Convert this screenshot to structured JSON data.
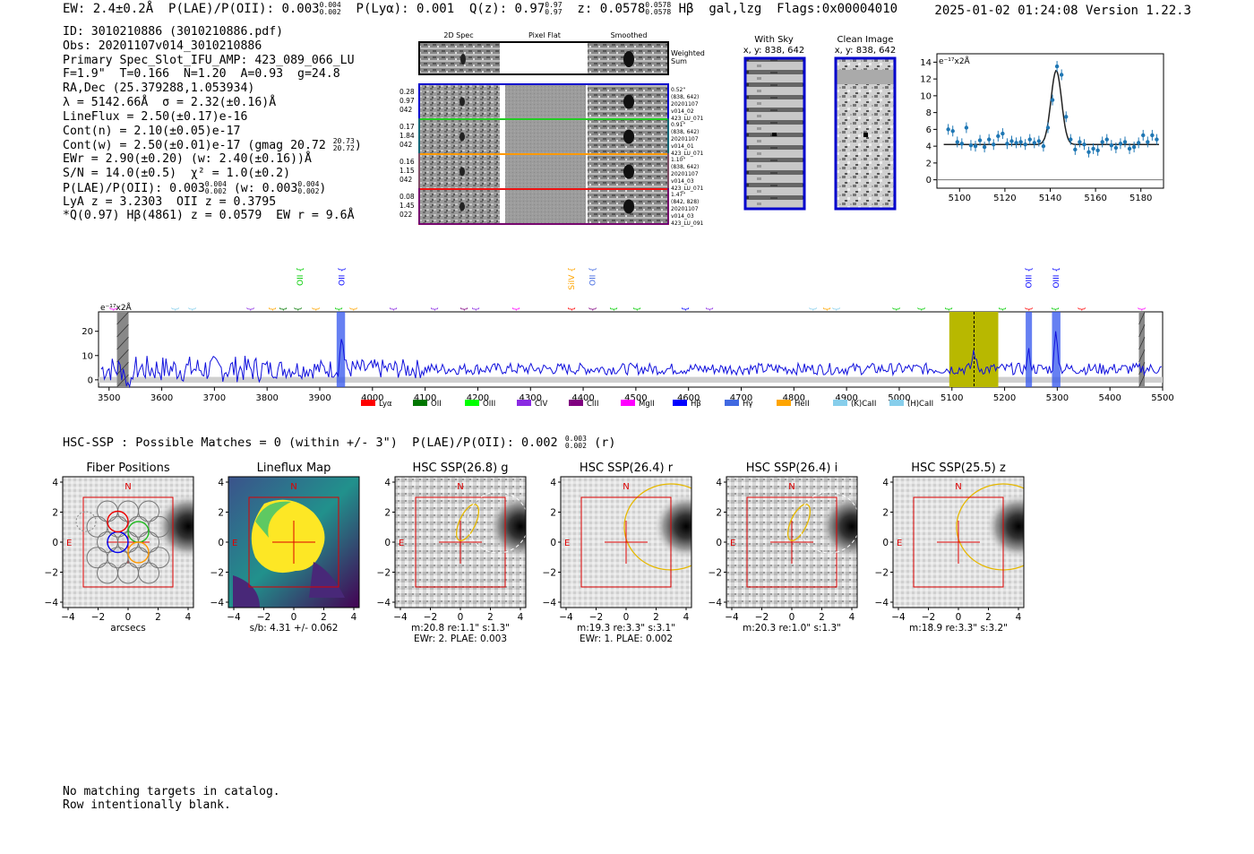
{
  "header": {
    "ew": "EW: 2.4±0.2Å",
    "plae_label": "P(LAE)/P(OII): 0.003",
    "plae_hi": "0.004",
    "plae_lo": "0.002",
    "plya": "P(Lyα): 0.001",
    "q_label": "Q(z): 0.97",
    "q_hi": "0.97",
    "q_lo": "0.97",
    "z_label": "z: 0.0578",
    "z_hi": "0.0578",
    "z_lo": "0.0578",
    "line": "Hβ",
    "flags": "gal,lzg  Flags:0x00004010",
    "datetime": "2025-01-02 01:24:08",
    "version": "Version 1.22.3"
  },
  "info": {
    "id": "ID: 3010210886 (3010210886.pdf)",
    "obs": "Obs: 20201107v014_3010210886",
    "primary": "Primary Spec_Slot_IFU_AMP: 423_089_066_LU",
    "fiber": "F=1.9\"  T=0.166  N=1.20  A=0.93  g=24.8",
    "radec": "RA,Dec (25.379288,1.053934)",
    "lambda": "λ = 5142.66Å  σ = 2.32(±0.16)Å",
    "lineflux": "LineFlux = 2.50(±0.17)e-16",
    "contn": "Cont(n) = 2.10(±0.05)e-17",
    "contw": "Cont(w) = 2.50(±0.01)e-17 (gmag 20.72",
    "contw_hi": "20.73",
    "contw_lo": "20.72",
    "contw_end": ")",
    "ewr": "EWr = 2.90(±0.20) (w: 2.40(±0.16))Å",
    "sn": "S/N = 14.0(±0.5)  χ² = 1.0(±0.2)",
    "plae": "P(LAE)/P(OII): 0.003",
    "plae_hi": "0.004",
    "plae_lo": "0.002",
    "plae_w": "(w: 0.003",
    "plae_w_hi": "0.004",
    "plae_w_lo": "0.002",
    "plae_end": ")",
    "lya": "LyA z = 3.2303  OII z = 0.3795",
    "q": "*Q(0.97) Hβ(4861) z = 0.0579  EW r = 9.6Å"
  },
  "cutouts": {
    "col_2d": "2D Spec",
    "col_flat": "Pixel Flat",
    "col_smooth": "Smoothed",
    "weighted": "Weighted Sum",
    "rows": [
      {
        "l1": "0.28",
        "l2": "0.97",
        "l3": "042",
        "r": [
          "0.52\"",
          "(838, 642)",
          "20201107",
          "v014_02",
          "423_LU_071"
        ],
        "color": "#0000cc"
      },
      {
        "l1": "0.17",
        "l2": "1.84",
        "l3": "042",
        "r": [
          "0.91\"",
          "(838, 642)",
          "20201107",
          "v014_01",
          "423_LU_071"
        ],
        "color": "#22cc22"
      },
      {
        "l1": "0.16",
        "l2": "1.15",
        "l3": "042",
        "r": [
          "1.10\"",
          "(838, 642)",
          "20201107",
          "v014_03",
          "423_LU_071"
        ],
        "color": "#ff9900"
      },
      {
        "l1": "0.08",
        "l2": "1.45",
        "l3": "022",
        "r": [
          "1.47\"",
          "(842, 828)",
          "20201107",
          "v014_03",
          "423_LU_091"
        ],
        "color": "#ee1111"
      }
    ]
  },
  "sky": {
    "with_sky_title": "With Sky",
    "with_sky_xy": "x, y: 838, 642",
    "clean_title": "Clean Image",
    "clean_xy": "x, y: 838, 642"
  },
  "zoom_chart": {
    "ylabel": "e⁻¹⁷x2Å",
    "xticks": [
      "5100",
      "5120",
      "5140",
      "5160",
      "5180"
    ],
    "yticks": [
      "0",
      "2",
      "4",
      "6",
      "8",
      "10",
      "12",
      "14"
    ]
  },
  "full_chart": {
    "ylabel": "e⁻¹⁷x2Å",
    "xticks": [
      "3500",
      "3600",
      "3700",
      "3800",
      "3900",
      "4000",
      "4100",
      "4200",
      "4300",
      "4400",
      "4500",
      "4600",
      "4700",
      "4800",
      "4900",
      "5000",
      "5100",
      "5200",
      "5300",
      "5400",
      "5500"
    ],
    "yticks": [
      "0",
      "10",
      "20"
    ],
    "legend": [
      {
        "label": "Lyα",
        "color": "#ff0000"
      },
      {
        "label": "OII",
        "color": "#007700"
      },
      {
        "label": "OIII",
        "color": "#00ff00"
      },
      {
        "label": "CIV",
        "color": "#8a2be2"
      },
      {
        "label": "CIII",
        "color": "#800080"
      },
      {
        "label": "MgII",
        "color": "#ff00ff"
      },
      {
        "label": "Hβ",
        "color": "#0000ff"
      },
      {
        "label": "Hγ",
        "color": "#4169e1"
      },
      {
        "label": "HeII",
        "color": "#ffa500"
      },
      {
        "label": "(K)CaII",
        "color": "#87ceeb"
      },
      {
        "label": "(H)CaII",
        "color": "#87ceeb"
      }
    ],
    "lines": [
      {
        "name": "CIII",
        "x": 3508,
        "row": 3,
        "color": "#ff00ff"
      },
      {
        "name": "MgII",
        "x": 3625,
        "row": 3,
        "color": "#87ceeb"
      },
      {
        "name": "MgII",
        "x": 3658,
        "row": 3,
        "color": "#87ceeb"
      },
      {
        "name": "SiIV",
        "x": 3768,
        "row": 3,
        "color": "#8a2be2"
      },
      {
        "name": "Lyα",
        "x": 3810,
        "row": 3,
        "color": "#ffa500"
      },
      {
        "name": "OII",
        "x": 3830,
        "row": 3,
        "color": "#007700"
      },
      {
        "name": "MgII",
        "x": 3858,
        "row": 3,
        "color": "#007700"
      },
      {
        "name": "NV",
        "x": 3892,
        "row": 3,
        "color": "#ffa500"
      },
      {
        "name": "OII",
        "x": 3863,
        "row": 1,
        "color": "#00cc00"
      },
      {
        "name": "Hγ",
        "x": 3936,
        "row": 3,
        "color": "#00cc00"
      },
      {
        "name": "SiII",
        "x": 3964,
        "row": 3,
        "color": "#ffa500"
      },
      {
        "name": "OII",
        "x": 3942,
        "row": 1,
        "color": "#0000ff"
      },
      {
        "name": "Lyα",
        "x": 4039,
        "row": 3,
        "color": "#8a2be2"
      },
      {
        "name": "NV",
        "x": 4118,
        "row": 3,
        "color": "#8a2be2"
      },
      {
        "name": "CIV",
        "x": 4174,
        "row": 3,
        "color": "#800080"
      },
      {
        "name": "SiII",
        "x": 4196,
        "row": 3,
        "color": "#8a2be2"
      },
      {
        "name": "CII",
        "x": 4272,
        "row": 3,
        "color": "#ff00ff"
      },
      {
        "name": "OVI",
        "x": 4378,
        "row": 3,
        "color": "#ff0000"
      },
      {
        "name": "SiIV",
        "x": 4378,
        "row": 1,
        "color": "#ffa500"
      },
      {
        "name": "HeII",
        "x": 4418,
        "row": 3,
        "color": "#800080"
      },
      {
        "name": "OII",
        "x": 4418,
        "row": 1,
        "color": "#4169e1"
      },
      {
        "name": "Hγ",
        "x": 4458,
        "row": 3,
        "color": "#00cc00"
      },
      {
        "name": "Hγ",
        "x": 4502,
        "row": 3,
        "color": "#00cc00"
      },
      {
        "name": "Hγ",
        "x": 4594,
        "row": 3,
        "color": "#0000ff"
      },
      {
        "name": "SiIV",
        "x": 4640,
        "row": 3,
        "color": "#8a2be2"
      },
      {
        "name": "OII",
        "x": 4836,
        "row": 3,
        "color": "#87ceeb"
      },
      {
        "name": "CIV",
        "x": 4862,
        "row": 3,
        "color": "#ffa500"
      },
      {
        "name": "OII",
        "x": 4880,
        "row": 3,
        "color": "#87ceeb"
      },
      {
        "name": "Hβ",
        "x": 4994,
        "row": 3,
        "color": "#00cc00"
      },
      {
        "name": "Hβ",
        "x": 5042,
        "row": 3,
        "color": "#00cc00"
      },
      {
        "name": "OIII",
        "x": 5094,
        "row": 3,
        "color": "#00cc00"
      },
      {
        "name": "OIII",
        "x": 5196,
        "row": 3,
        "color": "#00cc00"
      },
      {
        "name": "NV",
        "x": 5246,
        "row": 3,
        "color": "#ff0000"
      },
      {
        "name": "OIII",
        "x": 5246,
        "row": 1,
        "color": "#0000ff"
      },
      {
        "name": "NaI",
        "x": 5296,
        "row": 3,
        "color": "#00cc00"
      },
      {
        "name": "OIII",
        "x": 5298,
        "row": 1,
        "color": "#0000ff"
      },
      {
        "name": "SiII",
        "x": 5346,
        "row": 3,
        "color": "#ff0000"
      },
      {
        "name": "HeII",
        "x": 5460,
        "row": 3,
        "color": "#ff00ff"
      }
    ]
  },
  "hsc": {
    "text": "HSC-SSP : Possible Matches = 0 (within +/- 3\")  P(LAE)/P(OII): 0.002",
    "plae_hi": "0.003",
    "plae_lo": "0.002",
    "band": "(r)"
  },
  "panels": [
    {
      "title": "Fiber Positions",
      "cap1": "arcsecs",
      "cap2": ""
    },
    {
      "title": "Lineflux Map",
      "cap1": "s/b: 4.31 +/- 0.062",
      "cap2": ""
    },
    {
      "title": "HSC SSP(26.8) g",
      "cap1": "m:20.8  re:1.1\"  s:1.3\"",
      "cap2": "EWr: 2. PLAE: 0.003"
    },
    {
      "title": "HSC SSP(26.4) r",
      "cap1": "m:19.3  re:3.3\"  s:3.1\"",
      "cap2": "EWr: 1. PLAE: 0.002"
    },
    {
      "title": "HSC SSP(26.4) i",
      "cap1": "m:20.3  re:1.0\"  s:1.3\"",
      "cap2": ""
    },
    {
      "title": "HSC SSP(25.5) z",
      "cap1": "m:18.9  re:3.3\"  s:3.2\"",
      "cap2": ""
    }
  ],
  "panel_axis": {
    "ticks": [
      "−4",
      "−2",
      "0",
      "2",
      "4"
    ],
    "n_label": "N",
    "e_label": "E"
  },
  "footer": {
    "line1": "No matching targets in catalog.",
    "line2": "Row intentionally blank."
  },
  "chart_data": [
    {
      "type": "scatter",
      "title": "",
      "xlabel": "",
      "ylabel": "e-17x2Å",
      "xlim": [
        5090,
        5190
      ],
      "ylim": [
        -1,
        15
      ],
      "x": [
        5095,
        5097,
        5099,
        5101,
        5103,
        5105,
        5107,
        5109,
        5111,
        5113,
        5115,
        5117,
        5119,
        5121,
        5123,
        5125,
        5127,
        5129,
        5131,
        5133,
        5135,
        5137,
        5139,
        5141,
        5143,
        5145,
        5147,
        5149,
        5151,
        5153,
        5155,
        5157,
        5159,
        5161,
        5163,
        5165,
        5167,
        5169,
        5171,
        5173,
        5175,
        5177,
        5179,
        5181,
        5183,
        5185,
        5187
      ],
      "y": [
        6.0,
        5.8,
        4.5,
        4.3,
        6.2,
        4.1,
        4.0,
        4.7,
        3.9,
        4.8,
        4.2,
        5.2,
        5.5,
        4.3,
        4.6,
        4.4,
        4.5,
        4.2,
        4.8,
        4.4,
        4.6,
        4.0,
        6.2,
        9.5,
        13.5,
        12.5,
        7.5,
        4.8,
        3.6,
        4.5,
        4.2,
        3.3,
        3.7,
        3.5,
        4.5,
        4.8,
        4.1,
        3.8,
        4.3,
        4.5,
        3.7,
        3.9,
        4.4,
        5.3,
        4.5,
        5.3,
        4.8
      ],
      "fit": {
        "center": 5142.66,
        "sigma": 2.32,
        "continuum": 4.2,
        "peak": 13.0
      }
    },
    {
      "type": "line",
      "title": "",
      "xlabel": "",
      "ylabel": "e-17x2Å",
      "xlim": [
        3480,
        5500
      ],
      "ylim": [
        -3,
        28
      ],
      "series": [
        {
          "name": "spectrum",
          "continuum": 4.5,
          "peaks": [
            {
              "x": 3942,
              "y": 18
            },
            {
              "x": 5142,
              "y": 12
            },
            {
              "x": 5246,
              "y": 11
            },
            {
              "x": 5298,
              "y": 20
            }
          ]
        }
      ],
      "highlight_bands": [
        {
          "x0": 5095,
          "x1": 5188,
          "color": "#b8b800"
        },
        {
          "x0": 3932,
          "x1": 3948,
          "color": "#3355ee"
        },
        {
          "x0": 5240,
          "x1": 5252,
          "color": "#3355ee"
        },
        {
          "x0": 5290,
          "x1": 5306,
          "color": "#3355ee"
        }
      ]
    }
  ]
}
